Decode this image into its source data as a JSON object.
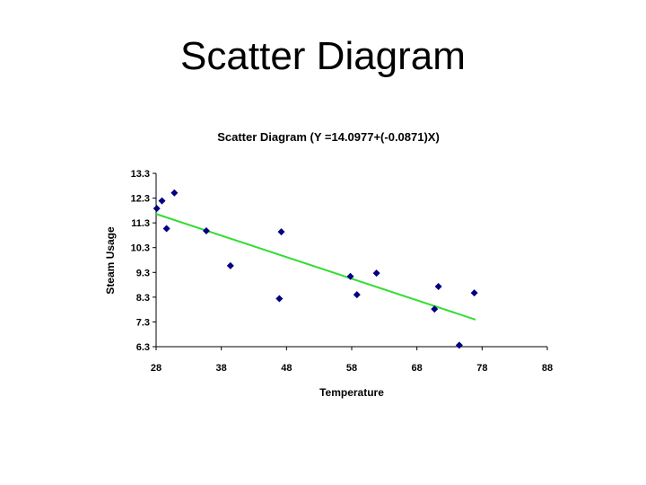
{
  "slide": {
    "title": "Scatter Diagram"
  },
  "chart_data": {
    "type": "scatter",
    "title": "Scatter Diagram (Y =14.0977+(-0.0871)X)",
    "xlabel": "Temperature",
    "ylabel": "Steam Usage",
    "xlim": [
      28,
      88
    ],
    "ylim": [
      6.3,
      13.3
    ],
    "xticks": [
      "28",
      "38",
      "48",
      "58",
      "68",
      "78",
      "88"
    ],
    "yticks": [
      "13.3",
      "12.3",
      "11.3",
      "10.3",
      "9.3",
      "8.3",
      "7.3",
      "6.3"
    ],
    "points": [
      {
        "x": 28.1,
        "y": 11.88
      },
      {
        "x": 28.9,
        "y": 12.19
      },
      {
        "x": 29.6,
        "y": 11.07
      },
      {
        "x": 30.8,
        "y": 12.51
      },
      {
        "x": 35.7,
        "y": 10.98
      },
      {
        "x": 39.4,
        "y": 9.57
      },
      {
        "x": 46.9,
        "y": 8.24
      },
      {
        "x": 47.2,
        "y": 10.94
      },
      {
        "x": 57.8,
        "y": 9.14
      },
      {
        "x": 58.8,
        "y": 8.4
      },
      {
        "x": 61.8,
        "y": 9.27
      },
      {
        "x": 70.7,
        "y": 7.82
      },
      {
        "x": 71.3,
        "y": 8.73
      },
      {
        "x": 74.5,
        "y": 6.36
      },
      {
        "x": 76.8,
        "y": 8.47
      }
    ],
    "trendline": {
      "slope": -0.0871,
      "intercept": 14.0977,
      "x_range": [
        28,
        77
      ],
      "color": "#33dd33"
    },
    "marker_color": "#000080",
    "grid": false,
    "legend": "none"
  }
}
